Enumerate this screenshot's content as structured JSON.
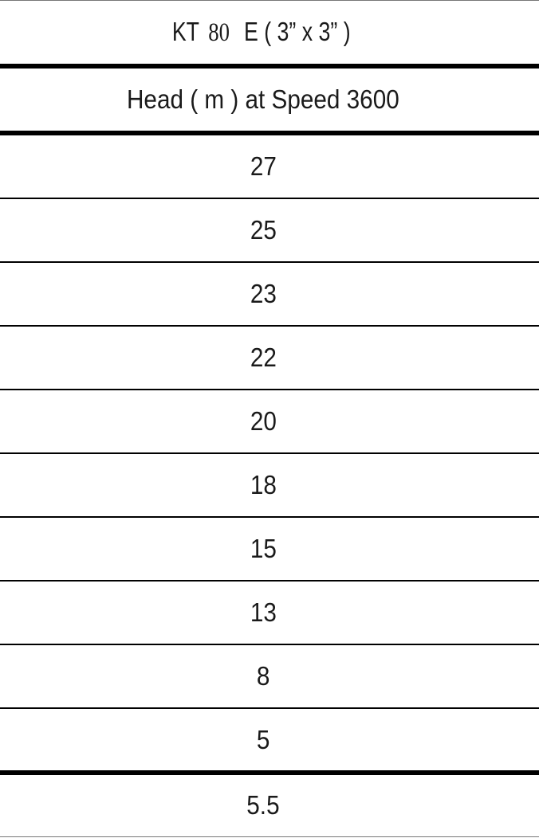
{
  "title": {
    "model": "KT",
    "size": "80",
    "suffix": "E ( 3” x 3” )"
  },
  "header": "Head ( m ) at Speed 3600",
  "values": [
    "27",
    "25",
    "23",
    "22",
    "20",
    "18",
    "15",
    "13",
    "8",
    "5"
  ],
  "footer": "5.5"
}
